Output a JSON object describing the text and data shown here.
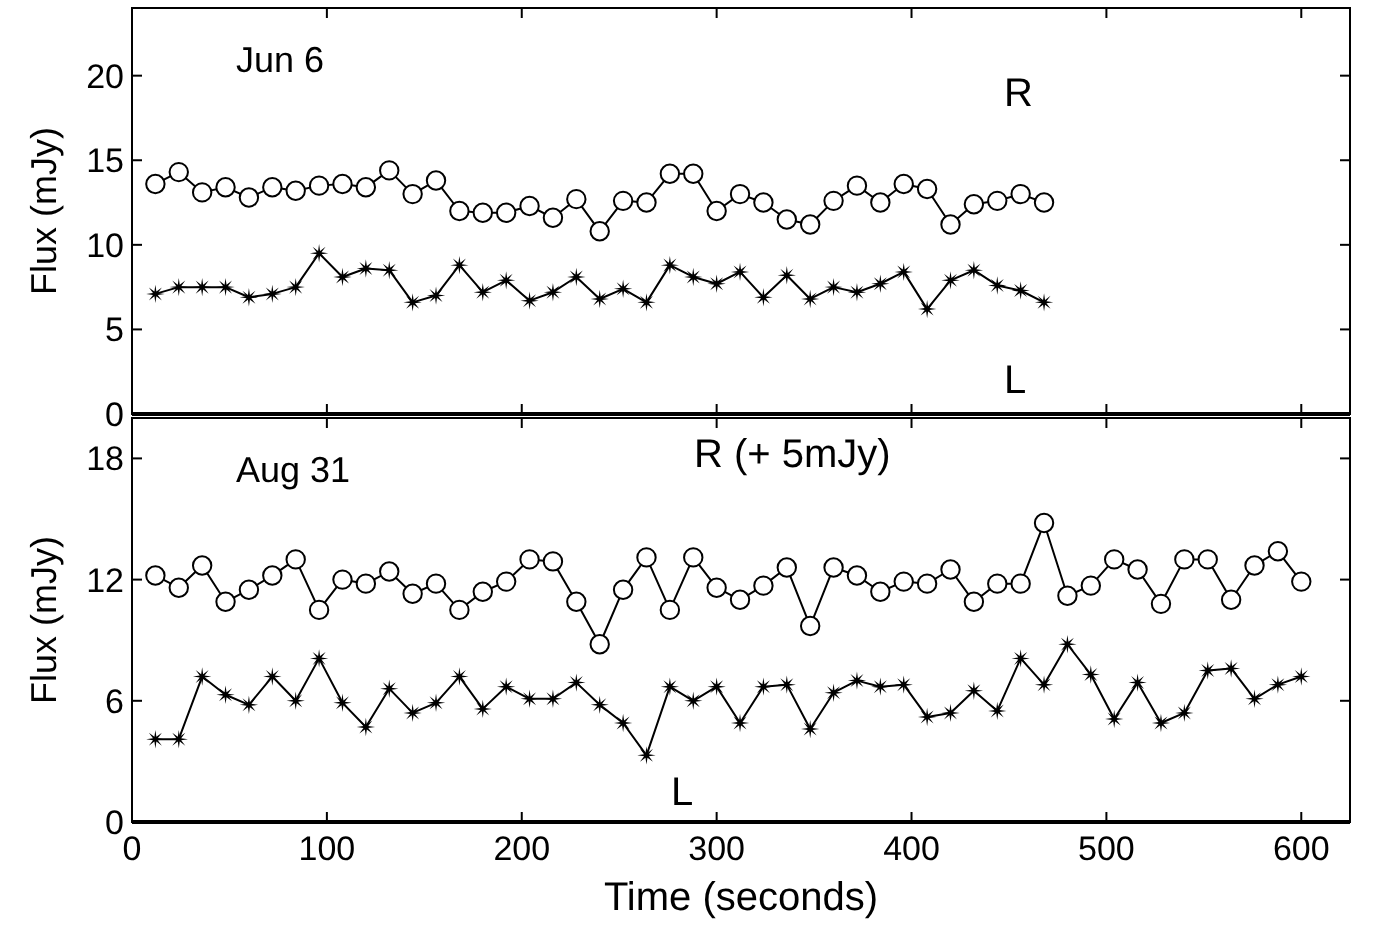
{
  "chart_data": [
    {
      "type": "line",
      "ylabel": "Flux (mJy)",
      "annotations": [
        "Jun 6"
      ],
      "xlim": [
        0,
        625
      ],
      "xticks": [
        0,
        100,
        200,
        300,
        400,
        500,
        600
      ],
      "ylim": [
        0,
        24
      ],
      "yticks": [
        0,
        5,
        10,
        15,
        20
      ],
      "tick_labels": "y",
      "grid": false,
      "line_style": "solid",
      "x": [
        12,
        24,
        36,
        48,
        60,
        72,
        84,
        96,
        108,
        120,
        132,
        144,
        156,
        168,
        180,
        192,
        204,
        216,
        228,
        240,
        252,
        264,
        276,
        288,
        300,
        312,
        324,
        336,
        348,
        360,
        372,
        384,
        396,
        408,
        420,
        432,
        444,
        456,
        468
      ],
      "series": [
        {
          "name": "R",
          "color": "#000000",
          "marker": "circle",
          "values": [
            13.6,
            14.3,
            13.1,
            13.4,
            12.8,
            13.4,
            13.2,
            13.5,
            13.6,
            13.4,
            14.4,
            13.0,
            13.8,
            12.0,
            11.9,
            11.9,
            12.3,
            11.6,
            12.7,
            10.8,
            12.6,
            12.5,
            14.2,
            14.2,
            12.0,
            13.0,
            12.5,
            11.5,
            11.2,
            12.6,
            13.5,
            12.5,
            13.6,
            13.3,
            11.2,
            12.4,
            12.6,
            13.0,
            12.5
          ]
        },
        {
          "name": "L",
          "color": "#000000",
          "marker": "star",
          "values": [
            7.1,
            7.5,
            7.5,
            7.5,
            6.9,
            7.1,
            7.5,
            9.5,
            8.1,
            8.6,
            8.5,
            6.6,
            7.0,
            8.8,
            7.2,
            7.9,
            6.7,
            7.2,
            8.1,
            6.8,
            7.4,
            6.6,
            8.8,
            8.1,
            7.7,
            8.4,
            6.9,
            8.2,
            6.8,
            7.5,
            7.2,
            7.7,
            8.4,
            6.2,
            7.9,
            8.5,
            7.6,
            7.3,
            6.6
          ]
        }
      ]
    },
    {
      "type": "line",
      "xlabel": "Time (seconds)",
      "ylabel": "Flux (mJy)",
      "annotations": [
        "Aug 31"
      ],
      "xlim": [
        0,
        625
      ],
      "xticks": [
        0,
        100,
        200,
        300,
        400,
        500,
        600
      ],
      "ylim": [
        0,
        20
      ],
      "yticks": [
        0,
        6,
        12,
        18
      ],
      "grid": false,
      "line_style": "solid",
      "x": [
        12,
        24,
        36,
        48,
        60,
        72,
        84,
        96,
        108,
        120,
        132,
        144,
        156,
        168,
        180,
        192,
        204,
        216,
        228,
        240,
        252,
        264,
        276,
        288,
        300,
        312,
        324,
        336,
        348,
        360,
        372,
        384,
        396,
        408,
        420,
        432,
        444,
        456,
        468,
        480,
        492,
        504,
        516,
        528,
        540,
        552,
        564,
        576,
        588,
        600
      ],
      "series": [
        {
          "name": "R (+ 5mJy)",
          "color": "#000000",
          "marker": "circle",
          "values": [
            12.2,
            11.6,
            12.7,
            10.9,
            11.5,
            12.2,
            13.0,
            10.5,
            12.0,
            11.8,
            12.4,
            11.3,
            11.8,
            10.5,
            11.4,
            11.9,
            13.0,
            12.9,
            10.9,
            8.8,
            11.5,
            13.1,
            10.5,
            13.1,
            11.6,
            11.0,
            11.7,
            12.6,
            9.7,
            12.6,
            12.2,
            11.4,
            11.9,
            11.8,
            12.5,
            10.9,
            11.8,
            11.8,
            14.8,
            11.2,
            11.7,
            13.0,
            12.5,
            10.8,
            13.0,
            13.0,
            11.0,
            12.7,
            13.4,
            11.9
          ]
        },
        {
          "name": "L",
          "color": "#000000",
          "marker": "star",
          "values": [
            4.1,
            4.1,
            7.2,
            6.3,
            5.8,
            7.2,
            6.0,
            8.1,
            5.9,
            4.7,
            6.6,
            5.4,
            5.9,
            7.2,
            5.6,
            6.7,
            6.1,
            6.1,
            6.9,
            5.8,
            4.9,
            3.3,
            6.7,
            6.0,
            6.7,
            4.9,
            6.7,
            6.8,
            4.6,
            6.4,
            7.0,
            6.7,
            6.8,
            5.2,
            5.4,
            6.5,
            5.5,
            8.1,
            6.8,
            8.8,
            7.3,
            5.1,
            6.9,
            4.9,
            5.4,
            7.5,
            7.6,
            6.1,
            6.8,
            7.2
          ]
        }
      ]
    }
  ]
}
